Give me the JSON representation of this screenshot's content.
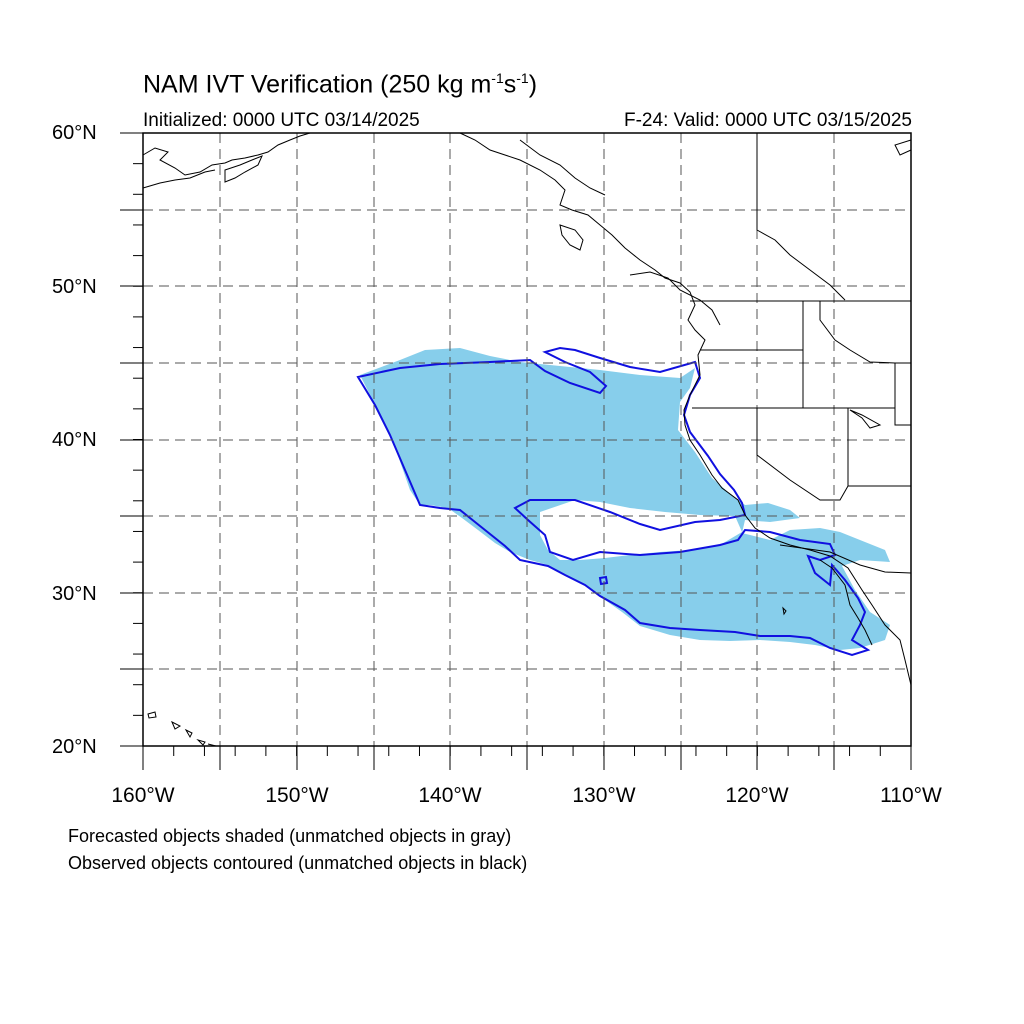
{
  "title": "NAM IVT Verification (250 kg m",
  "title_units": {
    "exp1": "-1",
    "mid": "s",
    "exp2": "-1",
    "close": ")"
  },
  "initialized": "Initialized: 0000 UTC 03/14/2025",
  "valid": "F-24: Valid: 0000 UTC 03/15/2025",
  "lat_labels": [
    "60°N",
    "50°N",
    "40°N",
    "30°N",
    "20°N"
  ],
  "lon_labels": [
    "160°W",
    "150°W",
    "140°W",
    "130°W",
    "120°W",
    "110°W"
  ],
  "notes": {
    "line1": "Forecasted objects shaded (unmatched objects in gray)",
    "line2": "Observed objects contoured (unmatched objects in black)"
  },
  "colors": {
    "forecast_fill": "#87ceeb",
    "observed_contour": "#1010e0",
    "coastline": "#000000",
    "grid": "#555555"
  },
  "map_extent": {
    "lon": [
      -160,
      -110
    ],
    "lat": [
      20,
      60
    ]
  }
}
